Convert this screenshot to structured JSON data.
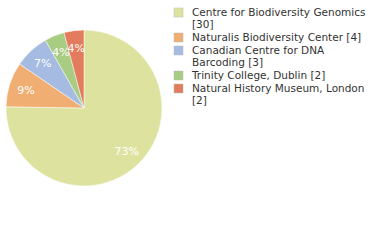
{
  "chart_data": {
    "type": "pie",
    "categories": [
      "Centre for Biodiversity Genomics [30]",
      "Naturalis Biodiversity Center [4]",
      "Canadian Centre for DNA Barcoding [3]",
      "Trinity College, Dublin [2]",
      "Natural History Museum, London [2]"
    ],
    "values": [
      73,
      9,
      7,
      4,
      4
    ],
    "value_labels": [
      "73%",
      "9%",
      "7%",
      "4%",
      "4%"
    ],
    "colors": [
      "#dde39f",
      "#f0ae72",
      "#a5bbe2",
      "#a7cc82",
      "#e27c5c"
    ],
    "data_labels": true,
    "legend": "top-right"
  }
}
